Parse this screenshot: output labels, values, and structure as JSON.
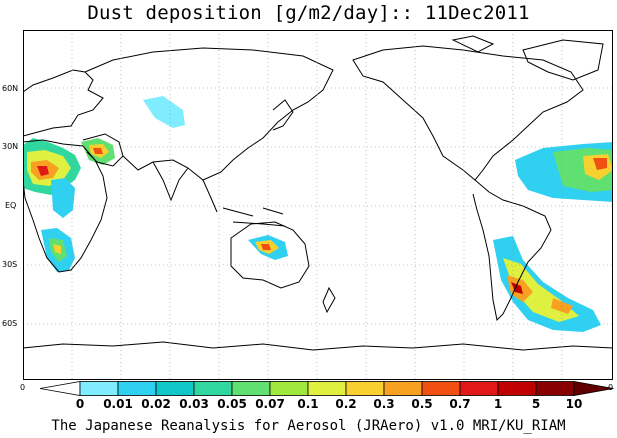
{
  "title": "Dust deposition [g/m2/day]:: 11Dec2011",
  "footer": "The Japanese Reanalysis for Aerosol (JRAero) v1.0 MRI/KU_RIAM",
  "lat_labels": [
    "60N",
    "30N",
    "EQ",
    "30S",
    "60S"
  ],
  "colorbar": {
    "left_end": "0",
    "right_end": "0",
    "levels": [
      "0",
      "0.01",
      "0.02",
      "0.03",
      "0.05",
      "0.07",
      "0.1",
      "0.2",
      "0.3",
      "0.5",
      "0.7",
      "1",
      "5",
      "10"
    ],
    "colors": [
      "#ffffff",
      "#80ecff",
      "#30d0f0",
      "#10c8c8",
      "#30d8a0",
      "#60e070",
      "#a0e840",
      "#e0f040",
      "#f8d030",
      "#f8a020",
      "#f05010",
      "#e01818",
      "#c00000",
      "#880000",
      "#600000"
    ]
  }
}
